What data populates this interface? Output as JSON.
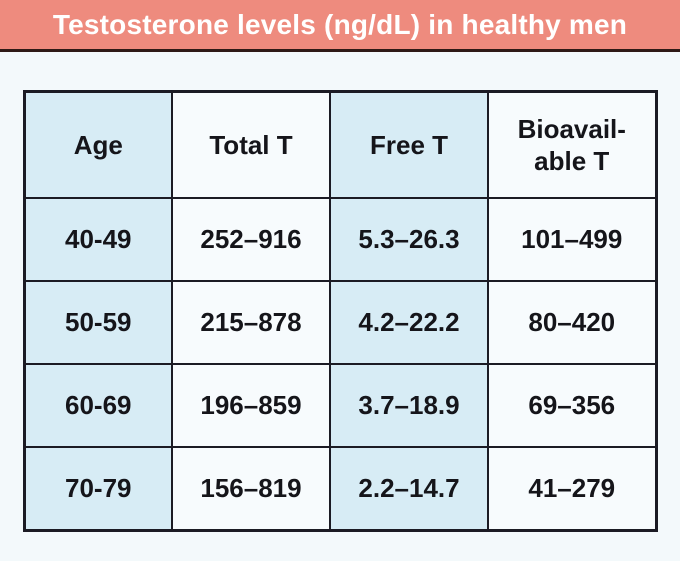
{
  "title": "Testosterone levels (ng/dL) in healthy men",
  "colors": {
    "title_bar_bg": "#ee8b7e",
    "title_text": "#ffffff",
    "title_underline": "#2e1a16",
    "page_bg": "#f3f9fb",
    "cell_blue": "#d7ecf5",
    "cell_white": "#f7fbfd",
    "table_border": "#1b1b24",
    "cell_text": "#15151a"
  },
  "chart_data": {
    "type": "table",
    "title": "Testosterone levels (ng/dL) in healthy men",
    "units": "ng/dL",
    "columns": [
      "Age",
      "Total T",
      "Free T",
      "Bioavail-able T"
    ],
    "rows": [
      [
        "40-49",
        "252–916",
        "5.3–26.3",
        "101–499"
      ],
      [
        "50-59",
        "215–878",
        "4.2–22.2",
        "80–420"
      ],
      [
        "60-69",
        "196–859",
        "3.7–18.9",
        "69–356"
      ],
      [
        "70-79",
        "156–819",
        "2.2–14.7",
        "41–279"
      ]
    ]
  }
}
